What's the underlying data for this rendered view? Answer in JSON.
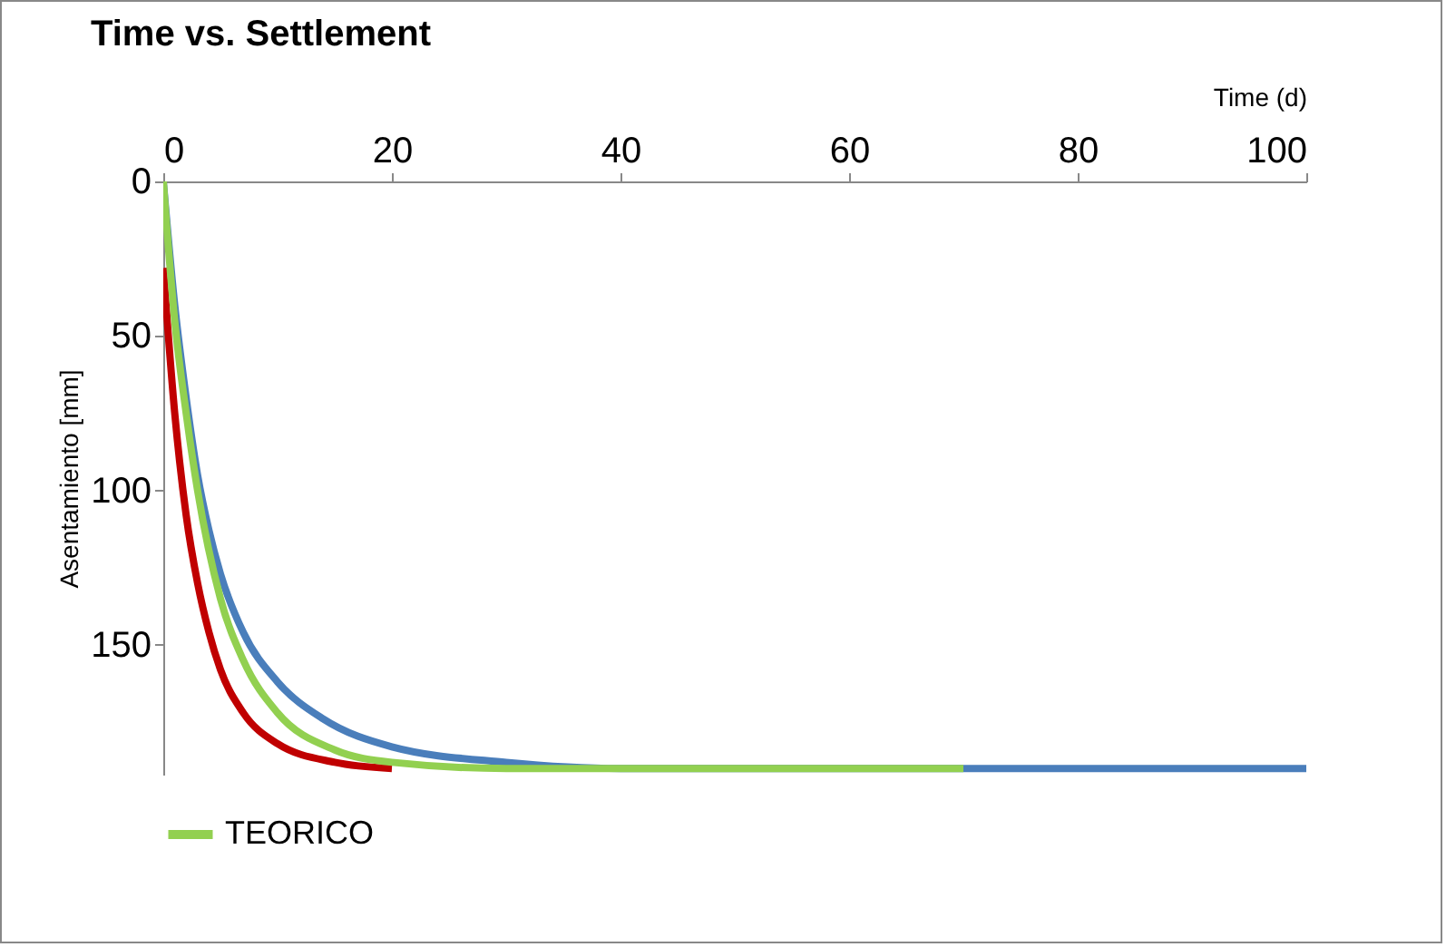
{
  "chart_data": {
    "type": "line",
    "title": "Time vs. Settlement",
    "xlabel": "Time (d)",
    "ylabel": "Asentamiento  [mm]",
    "xlim": [
      0,
      100
    ],
    "xticks": [
      0,
      20,
      40,
      60,
      80,
      100
    ],
    "ylim": [
      192,
      0
    ],
    "yticks": [
      0,
      50,
      100,
      150
    ],
    "grid": false,
    "legend": "bottom",
    "marker": "none",
    "line_style": "solid",
    "series": [
      {
        "color": "#4a7ebb",
        "x": [
          0,
          1,
          2,
          3,
          4,
          5,
          7,
          10,
          14,
          20,
          30,
          40,
          60,
          100
        ],
        "values": [
          0,
          40,
          70,
          95,
          113,
          127,
          146,
          162,
          174,
          183,
          188,
          190,
          190,
          190
        ]
      },
      {
        "color": "#c00000",
        "x": [
          0,
          1,
          2,
          3,
          4,
          5,
          7,
          10,
          15,
          20
        ],
        "values": [
          28,
          75,
          108,
          130,
          146,
          158,
          172,
          182,
          188,
          190
        ]
      },
      {
        "name": "TEORICO",
        "color": "#92d050",
        "x": [
          0,
          1,
          2,
          3,
          5,
          7,
          10,
          15,
          20,
          30,
          70
        ],
        "values": [
          0,
          45,
          75,
          100,
          135,
          155,
          172,
          184,
          188,
          190,
          190
        ]
      }
    ]
  }
}
